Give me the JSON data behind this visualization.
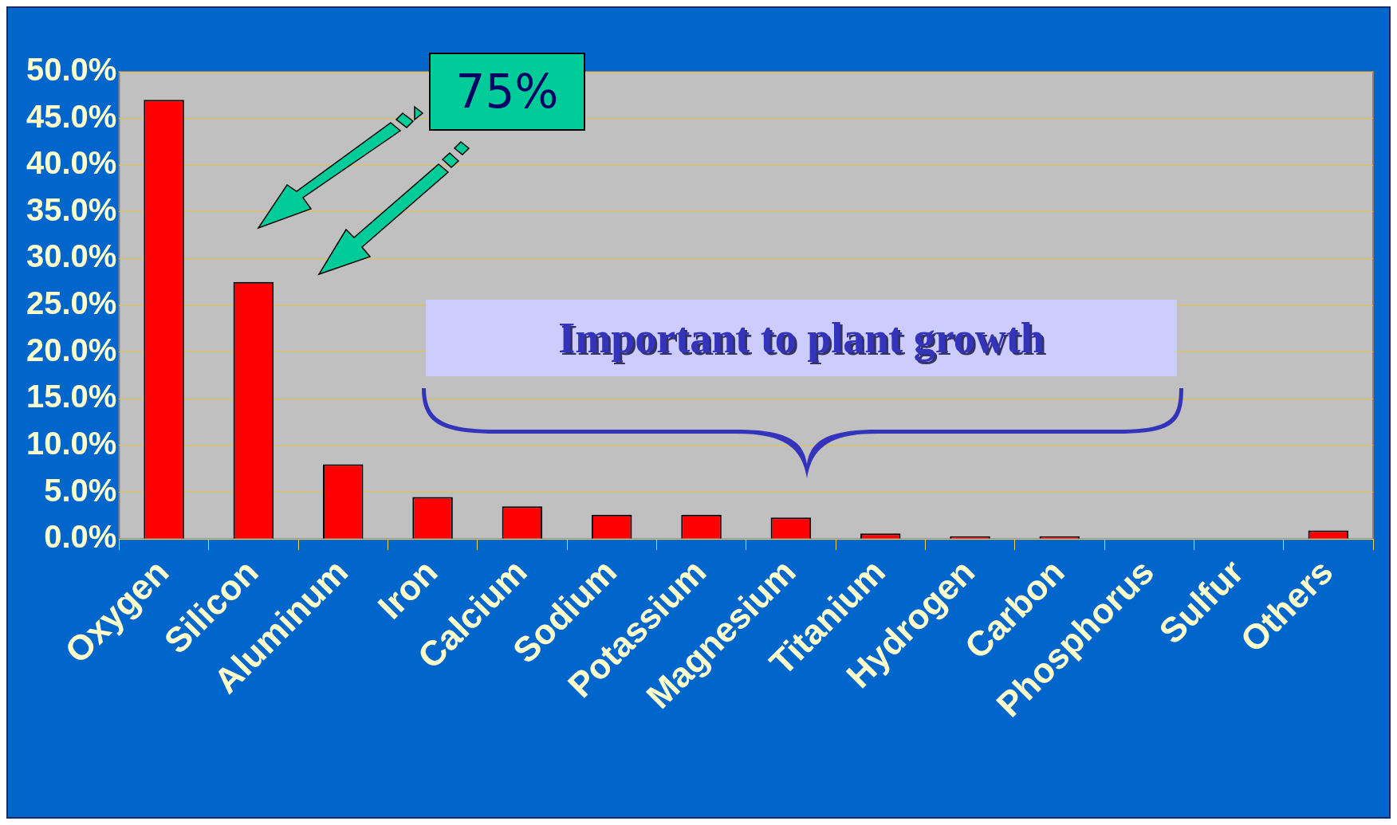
{
  "chart_data": {
    "type": "bar",
    "categories": [
      "Oxygen",
      "Silicon",
      "Aluminum",
      "Iron",
      "Calcium",
      "Sodium",
      "Potassium",
      "Magnesium",
      "Titanium",
      "Hydrogen",
      "Carbon",
      "Phosphorus",
      "Sulfur",
      "Others"
    ],
    "values": [
      47,
      27.5,
      8,
      4.5,
      3.5,
      2.6,
      2.6,
      2.3,
      0.6,
      0.3,
      0.3,
      0,
      0,
      0.9
    ],
    "color": "#ff0000",
    "ylim": [
      0,
      50
    ],
    "yticks": [
      {
        "value": 0,
        "label": "0.0%"
      },
      {
        "value": 5,
        "label": "5.0%"
      },
      {
        "value": 10,
        "label": "10.0%"
      },
      {
        "value": 15,
        "label": "15.0%"
      },
      {
        "value": 20,
        "label": "20.0%"
      },
      {
        "value": 25,
        "label": "25.0%"
      },
      {
        "value": 30,
        "label": "30.0%"
      },
      {
        "value": 35,
        "label": "35.0%"
      },
      {
        "value": 40,
        "label": "40.0%"
      },
      {
        "value": 45,
        "label": "45.0%"
      },
      {
        "value": 50,
        "label": "50.0%"
      }
    ],
    "grid": "y",
    "legend": false,
    "annotations": [
      "75%",
      "Important to plant growth"
    ]
  }
}
